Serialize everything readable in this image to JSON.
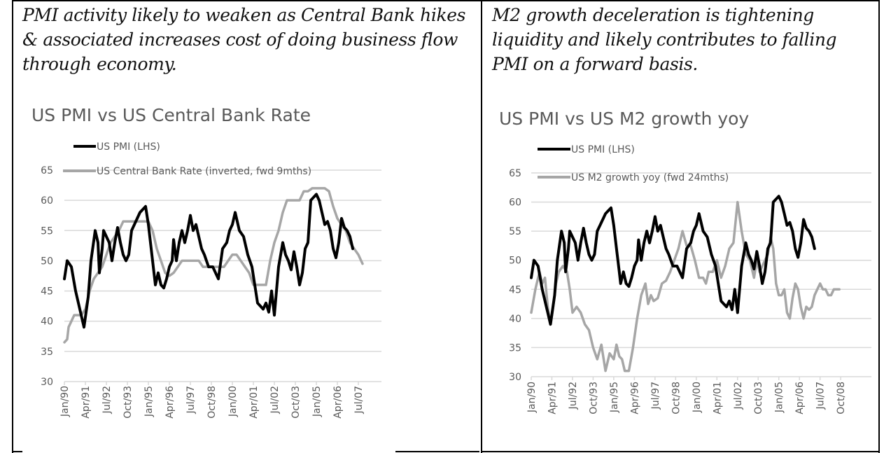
{
  "captions": {
    "left": "PMI activity likely to weaken as Central Bank hikes & associated increases cost of doing business flow through economy.",
    "right": "M2 growth deceleration is tightening liquidity and likely contributes to falling PMI on a forward basis."
  },
  "colors": {
    "pmi": "#000000",
    "secondary": "#a6a6a6",
    "grid": "#d9d9d9",
    "text": "#595959"
  },
  "chart_data": [
    {
      "type": "line",
      "title": "US PMI vs US Central Bank Rate",
      "xlabel": "",
      "ylabel": "",
      "ylim": [
        30,
        65
      ],
      "yticks": [
        30,
        35,
        40,
        45,
        50,
        55,
        60,
        65
      ],
      "x_start": "Jan/90",
      "x_unit": "months since Jan/90",
      "xlim": [
        0,
        219
      ],
      "xticks": [
        {
          "m": 0,
          "label": "Jan/90"
        },
        {
          "m": 15,
          "label": "Apr/91"
        },
        {
          "m": 30,
          "label": "Jul/92"
        },
        {
          "m": 45,
          "label": "Oct/93"
        },
        {
          "m": 60,
          "label": "Jan/95"
        },
        {
          "m": 75,
          "label": "Apr/96"
        },
        {
          "m": 90,
          "label": "Jul/97"
        },
        {
          "m": 105,
          "label": "Oct/98"
        },
        {
          "m": 120,
          "label": "Jan/00"
        },
        {
          "m": 135,
          "label": "Apr/01"
        },
        {
          "m": 150,
          "label": "Jul/02"
        },
        {
          "m": 165,
          "label": "Oct/03"
        },
        {
          "m": 180,
          "label": "Jan/05"
        },
        {
          "m": 195,
          "label": "Apr/06"
        },
        {
          "m": 210,
          "label": "Jul/07"
        }
      ],
      "grid": true,
      "legend_position": "top-left",
      "series": [
        {
          "name": "US PMI (LHS)",
          "color": "#000000",
          "x": [
            0,
            2,
            5,
            8,
            12,
            14,
            17,
            19,
            22,
            24,
            25,
            27,
            28,
            30,
            32,
            34,
            36,
            38,
            40,
            42,
            44,
            46,
            48,
            50,
            52,
            54,
            56,
            58,
            60,
            62,
            64,
            65,
            67,
            69,
            71,
            73,
            75,
            77,
            78,
            80,
            82,
            84,
            86,
            88,
            90,
            92,
            94,
            96,
            98,
            100,
            103,
            106,
            110,
            113,
            116,
            118,
            120,
            122,
            125,
            128,
            131,
            134,
            136,
            138,
            140,
            142,
            144,
            146,
            148,
            150,
            153,
            156,
            158,
            160,
            162,
            164,
            166,
            168,
            170,
            172,
            174,
            176,
            178,
            180,
            182,
            184,
            186,
            188,
            190,
            192,
            194,
            196,
            198,
            200,
            202,
            204,
            206
          ],
          "y": [
            47,
            50,
            49,
            45,
            41,
            39,
            44,
            50,
            55,
            53,
            48,
            52,
            55,
            54,
            53,
            50,
            53,
            55.5,
            53,
            51,
            50,
            51,
            55,
            56,
            57,
            58,
            58.5,
            59,
            56,
            52,
            48,
            46,
            48,
            46,
            45.5,
            47,
            49,
            50,
            53.5,
            50,
            53,
            55,
            53,
            55,
            57.5,
            55,
            56,
            54,
            52,
            51,
            49,
            49,
            47,
            52,
            53,
            55,
            56,
            58,
            55,
            54,
            51,
            49,
            46,
            43,
            42.5,
            42,
            43,
            41.5,
            45,
            41,
            49,
            53,
            51,
            50,
            48.5,
            51.5,
            49,
            46,
            48,
            52,
            53,
            60,
            60.5,
            61,
            60,
            58,
            56,
            56.5,
            55,
            52,
            50.5,
            53,
            57,
            55.5,
            55,
            54,
            52
          ]
        },
        {
          "name": "US Central Bank Rate (inverted, fwd 9mths)",
          "color": "#a6a6a6",
          "x": [
            0,
            2,
            3,
            5,
            7,
            9,
            12,
            15,
            18,
            21,
            24,
            27,
            30,
            33,
            36,
            39,
            42,
            45,
            48,
            51,
            54,
            57,
            60,
            63,
            66,
            69,
            72,
            75,
            78,
            81,
            84,
            87,
            90,
            93,
            96,
            99,
            102,
            105,
            108,
            111,
            114,
            117,
            120,
            123,
            126,
            129,
            132,
            135,
            138,
            141,
            144,
            147,
            150,
            153,
            156,
            159,
            162,
            165,
            168,
            171,
            174,
            177,
            180,
            183,
            186,
            189,
            192,
            195,
            198,
            201,
            204,
            207,
            210,
            213
          ],
          "y": [
            36.5,
            37,
            39,
            40,
            41,
            41,
            41,
            42,
            45,
            47,
            48,
            49,
            51,
            53,
            54,
            55,
            56.5,
            56.5,
            56.5,
            56.5,
            56.5,
            56.5,
            56.5,
            55,
            52,
            50,
            48,
            47.5,
            48,
            49,
            50,
            50,
            50,
            50,
            50,
            49,
            49,
            49,
            49,
            49,
            49,
            50,
            51,
            51,
            50,
            49,
            48,
            46,
            46,
            46,
            46,
            50,
            53,
            55,
            58,
            60,
            60,
            60,
            60,
            61.5,
            61.5,
            62,
            62,
            62,
            62,
            61.5,
            59,
            57,
            56,
            55,
            53,
            52,
            51,
            49.5
          ]
        }
      ]
    },
    {
      "type": "line",
      "title": "US PMI vs US M2 growth yoy",
      "xlabel": "",
      "ylabel": "",
      "ylim": [
        30,
        65
      ],
      "yticks": [
        30,
        35,
        40,
        45,
        50,
        55,
        60,
        65
      ],
      "x_start": "Jan/90",
      "x_unit": "months since Jan/90",
      "xlim": [
        0,
        228
      ],
      "xticks": [
        {
          "m": 0,
          "label": "Jan/90"
        },
        {
          "m": 15,
          "label": "Apr/91"
        },
        {
          "m": 30,
          "label": "Jul/92"
        },
        {
          "m": 45,
          "label": "Oct/93"
        },
        {
          "m": 60,
          "label": "Jan/95"
        },
        {
          "m": 75,
          "label": "Apr/96"
        },
        {
          "m": 90,
          "label": "Jul/97"
        },
        {
          "m": 105,
          "label": "Oct/98"
        },
        {
          "m": 120,
          "label": "Jan/00"
        },
        {
          "m": 135,
          "label": "Apr/01"
        },
        {
          "m": 150,
          "label": "Jul/02"
        },
        {
          "m": 165,
          "label": "Oct/03"
        },
        {
          "m": 180,
          "label": "Jan/05"
        },
        {
          "m": 195,
          "label": "Apr/06"
        },
        {
          "m": 210,
          "label": "Jul/07"
        },
        {
          "m": 225,
          "label": "Oct/08"
        }
      ],
      "grid": true,
      "legend_position": "top-left",
      "series": [
        {
          "name": "US PMI (LHS)",
          "color": "#000000",
          "x": [
            0,
            2,
            5,
            8,
            12,
            14,
            17,
            19,
            22,
            24,
            25,
            27,
            28,
            30,
            32,
            34,
            36,
            38,
            40,
            42,
            44,
            46,
            48,
            50,
            52,
            54,
            56,
            58,
            60,
            62,
            64,
            65,
            67,
            69,
            71,
            73,
            75,
            77,
            78,
            80,
            82,
            84,
            86,
            88,
            90,
            92,
            94,
            96,
            98,
            100,
            103,
            106,
            110,
            113,
            116,
            118,
            120,
            122,
            125,
            128,
            131,
            134,
            136,
            138,
            140,
            142,
            144,
            146,
            148,
            150,
            153,
            156,
            158,
            160,
            162,
            164,
            166,
            168,
            170,
            172,
            174,
            176,
            178,
            180,
            182,
            184,
            186,
            188,
            190,
            192,
            194,
            196,
            198,
            200,
            202,
            204,
            206
          ],
          "y": [
            47,
            50,
            49,
            45,
            41,
            39,
            44,
            50,
            55,
            53,
            48,
            52,
            55,
            54,
            53,
            50,
            53,
            55.5,
            53,
            51,
            50,
            51,
            55,
            56,
            57,
            58,
            58.5,
            59,
            56,
            52,
            48,
            46,
            48,
            46,
            45.5,
            47,
            49,
            50,
            53.5,
            50,
            53,
            55,
            53,
            55,
            57.5,
            55,
            56,
            54,
            52,
            51,
            49,
            49,
            47,
            52,
            53,
            55,
            56,
            58,
            55,
            54,
            51,
            49,
            46,
            43,
            42.5,
            42,
            43,
            41.5,
            45,
            41,
            49,
            53,
            51,
            50,
            48.5,
            51.5,
            49,
            46,
            48,
            52,
            53,
            60,
            60.5,
            61,
            60,
            58,
            56,
            56.5,
            55,
            52,
            50.5,
            53,
            57,
            55.5,
            55,
            54,
            52
          ]
        },
        {
          "name": "US M2 growth yoy (fwd 24mths)",
          "color": "#a6a6a6",
          "x": [
            0,
            3,
            6,
            8,
            10,
            12,
            14,
            16,
            18,
            20,
            23,
            26,
            28,
            30,
            33,
            36,
            39,
            42,
            45,
            48,
            51,
            54,
            57,
            60,
            62,
            64,
            66,
            68,
            71,
            74,
            77,
            80,
            83,
            85,
            87,
            89,
            92,
            95,
            98,
            101,
            104,
            107,
            110,
            113,
            116,
            119,
            122,
            125,
            127,
            129,
            132,
            135,
            138,
            141,
            144,
            147,
            150,
            153,
            156,
            159,
            162,
            164,
            166,
            168,
            170,
            172,
            174,
            176,
            178,
            180,
            182,
            184,
            186,
            188,
            190,
            192,
            194,
            196,
            198,
            200,
            202,
            204,
            206,
            208,
            210,
            212,
            214,
            216,
            218,
            220,
            222,
            224
          ],
          "y": [
            41,
            45,
            48,
            46,
            47,
            42,
            39,
            42,
            46,
            48,
            49,
            48,
            45,
            41,
            42,
            41,
            39,
            38,
            35,
            33,
            35.5,
            31,
            34,
            33,
            35.5,
            33.5,
            33,
            31,
            31,
            35,
            40,
            44,
            46,
            42.5,
            44,
            43,
            43.5,
            46,
            46.5,
            48,
            50,
            52,
            55,
            52.5,
            52.5,
            50,
            47,
            47,
            46,
            48,
            48,
            50,
            47,
            49,
            52,
            53,
            60,
            55,
            51,
            50,
            47,
            50,
            48,
            49,
            50,
            51,
            54,
            52,
            46,
            44,
            44,
            45,
            41,
            40,
            43.5,
            46,
            45,
            42,
            40,
            42,
            41.5,
            42,
            44,
            45,
            46,
            45,
            45,
            44,
            44,
            45,
            45,
            45
          ]
        }
      ]
    }
  ]
}
